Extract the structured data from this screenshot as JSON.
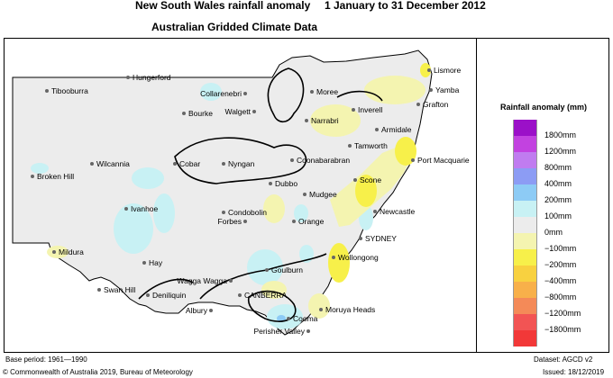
{
  "header": {
    "title": "New South Wales rainfall anomaly",
    "period": "1 January to 31 December 2012",
    "subtitle": "Australian Gridded Climate Data"
  },
  "legend": {
    "title": "Rainfall anomaly (mm)",
    "items": [
      {
        "label": "1800mm",
        "color": "#9b10c8"
      },
      {
        "label": "1200mm",
        "color": "#c242e0"
      },
      {
        "label": "800mm",
        "color": "#c07cf0"
      },
      {
        "label": "400mm",
        "color": "#8c9cf4"
      },
      {
        "label": "200mm",
        "color": "#8dcbf5"
      },
      {
        "label": "100mm",
        "color": "#c8f1f4"
      },
      {
        "label": "0mm",
        "color": "#ececec"
      },
      {
        "label": "−100mm",
        "color": "#f4f4b0"
      },
      {
        "label": "−200mm",
        "color": "#f7f04a"
      },
      {
        "label": "−400mm",
        "color": "#f8d140"
      },
      {
        "label": "−800mm",
        "color": "#f8b04a"
      },
      {
        "label": "−1200mm",
        "color": "#f48a58"
      },
      {
        "label": "−1800mm",
        "color": "#f25454"
      },
      {
        "label": "",
        "color": "#f23838"
      }
    ]
  },
  "places": [
    "Hungerford",
    "Tibooburra",
    "Bourke",
    "Collarenebri",
    "Walgett",
    "Moree",
    "Inverell",
    "Lismore",
    "Yamba",
    "Grafton",
    "Narrabri",
    "Armidale",
    "Tamworth",
    "Port Macquarie",
    "Coonabarabran",
    "Wilcannia",
    "Cobar",
    "Nyngan",
    "Broken Hill",
    "Dubbo",
    "Scone",
    "Mudgee",
    "Newcastle",
    "Ivanhoe",
    "Condobolin",
    "Orange",
    "Forbes",
    "SYDNEY",
    "Mildura",
    "Hay",
    "Wollongong",
    "Wagga Wagga",
    "Goulburn",
    "Swan Hill",
    "Deniliquin",
    "CANBERRA",
    "Moruya Heads",
    "Albury",
    "Cooma",
    "Perisher Valley"
  ],
  "footer": {
    "base_period": "Base period: 1961—1990",
    "dataset": "Dataset: AGCD v2",
    "copyright": "© Commonwealth of Australia 2019, Bureau of Meteorology",
    "issued": "Issued: 18/12/2019"
  }
}
